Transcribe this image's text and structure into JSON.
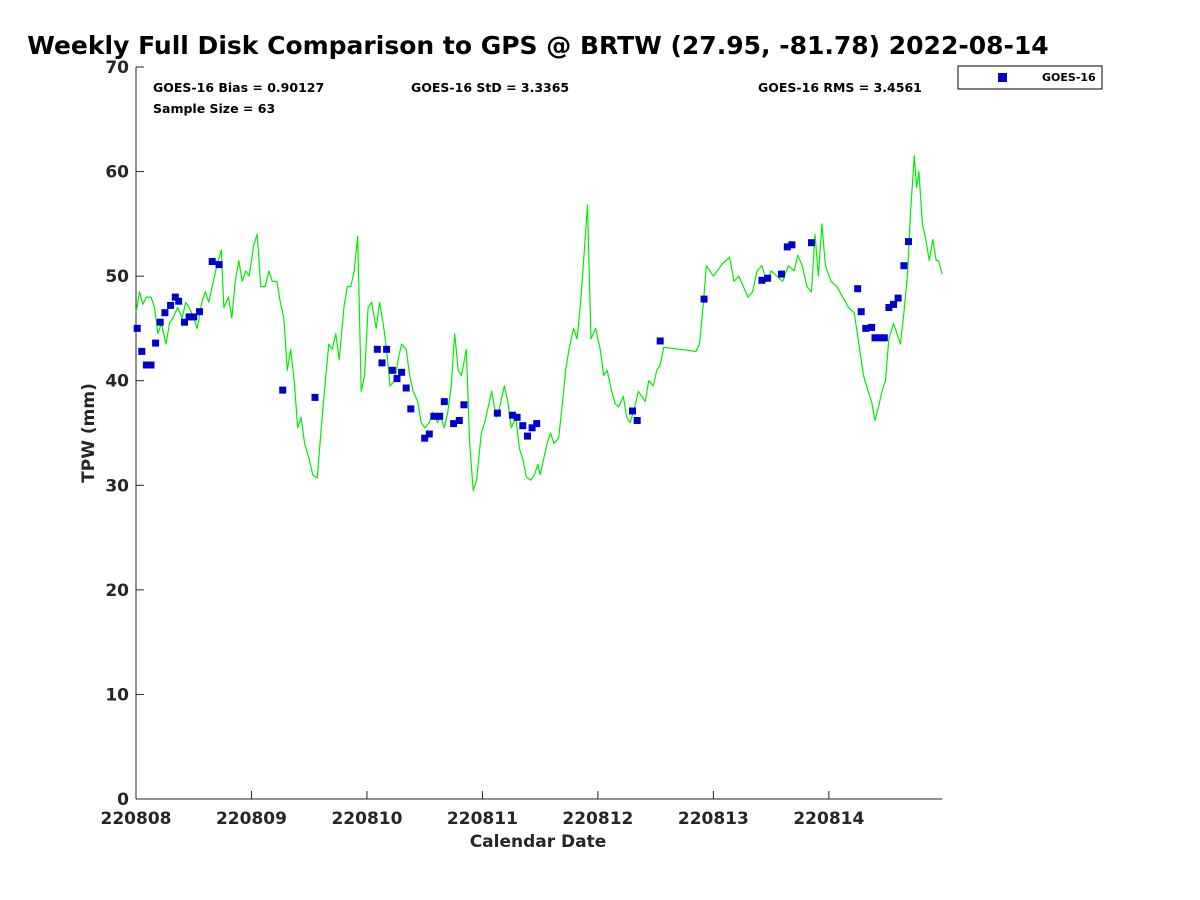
{
  "chart_data": {
    "type": "scatter",
    "title": "Weekly Full Disk Comparison to GPS @ BRTW (27.95, -81.78) 2022-08-14",
    "xlabel": "Calendar Date",
    "ylabel": "TPW (mm)",
    "xlim": [
      0,
      6.98
    ],
    "ylim": [
      0,
      70
    ],
    "x_ticks": [
      0,
      1,
      2,
      3,
      4,
      5,
      6
    ],
    "x_tick_labels": [
      "220808",
      "220809",
      "220810",
      "220811",
      "220812",
      "220813",
      "220814"
    ],
    "y_ticks": [
      0,
      10,
      20,
      30,
      40,
      50,
      60,
      70
    ],
    "y_tick_labels": [
      "0",
      "10",
      "20",
      "30",
      "40",
      "50",
      "60",
      "70"
    ],
    "stats": {
      "bias": "GOES-16 Bias = 0.90127",
      "std": "GOES-16 StD = 3.3365",
      "rms": "GOES-16 RMS = 3.4561",
      "sample": "Sample Size = 63"
    },
    "legend": {
      "label": "GOES-16",
      "position": "outside-top-right",
      "color": "#0000cc"
    },
    "series": [
      {
        "name": "GOES-16",
        "kind": "markers",
        "color": "#0000cc",
        "points": [
          [
            0.01,
            45.0
          ],
          [
            0.05,
            42.8
          ],
          [
            0.09,
            41.5
          ],
          [
            0.13,
            41.5
          ],
          [
            0.17,
            43.6
          ],
          [
            0.21,
            45.6
          ],
          [
            0.25,
            46.5
          ],
          [
            0.3,
            47.2
          ],
          [
            0.34,
            48.0
          ],
          [
            0.37,
            47.6
          ],
          [
            0.42,
            45.6
          ],
          [
            0.46,
            46.1
          ],
          [
            0.5,
            46.1
          ],
          [
            0.55,
            46.6
          ],
          [
            0.66,
            51.4
          ],
          [
            0.72,
            51.1
          ],
          [
            1.27,
            39.1
          ],
          [
            1.55,
            38.4
          ],
          [
            2.09,
            43.0
          ],
          [
            2.13,
            41.7
          ],
          [
            2.17,
            43.0
          ],
          [
            2.22,
            41.0
          ],
          [
            2.26,
            40.2
          ],
          [
            2.3,
            40.8
          ],
          [
            2.34,
            39.3
          ],
          [
            2.38,
            37.3
          ],
          [
            2.5,
            34.5
          ],
          [
            2.54,
            34.9
          ],
          [
            2.58,
            36.6
          ],
          [
            2.63,
            36.6
          ],
          [
            2.67,
            38.0
          ],
          [
            2.75,
            35.9
          ],
          [
            2.8,
            36.2
          ],
          [
            2.84,
            37.7
          ],
          [
            3.13,
            36.9
          ],
          [
            3.26,
            36.7
          ],
          [
            3.3,
            36.5
          ],
          [
            3.35,
            35.7
          ],
          [
            3.39,
            34.7
          ],
          [
            3.43,
            35.5
          ],
          [
            3.47,
            35.9
          ],
          [
            4.3,
            37.1
          ],
          [
            4.34,
            36.2
          ],
          [
            4.54,
            43.8
          ],
          [
            4.92,
            47.8
          ],
          [
            5.42,
            49.6
          ],
          [
            5.47,
            49.8
          ],
          [
            5.59,
            50.2
          ],
          [
            5.64,
            52.8
          ],
          [
            5.68,
            53.0
          ],
          [
            5.85,
            53.2
          ],
          [
            6.25,
            48.8
          ],
          [
            6.28,
            46.6
          ],
          [
            6.32,
            45.0
          ],
          [
            6.37,
            45.1
          ],
          [
            6.4,
            44.1
          ],
          [
            6.44,
            44.1
          ],
          [
            6.48,
            44.1
          ],
          [
            6.52,
            47.0
          ],
          [
            6.56,
            47.3
          ],
          [
            6.6,
            47.9
          ],
          [
            6.65,
            51.0
          ],
          [
            6.69,
            53.3
          ]
        ]
      },
      {
        "name": "GPS",
        "kind": "line",
        "color": "#00ee00",
        "points": [
          [
            0.0,
            46.5
          ],
          [
            0.03,
            48.5
          ],
          [
            0.06,
            47.3
          ],
          [
            0.09,
            48.0
          ],
          [
            0.13,
            48.0
          ],
          [
            0.16,
            47.0
          ],
          [
            0.19,
            44.5
          ],
          [
            0.22,
            45.5
          ],
          [
            0.26,
            43.5
          ],
          [
            0.29,
            45.5
          ],
          [
            0.32,
            46.0
          ],
          [
            0.36,
            47.0
          ],
          [
            0.4,
            46.0
          ],
          [
            0.43,
            47.5
          ],
          [
            0.46,
            47.0
          ],
          [
            0.5,
            46.0
          ],
          [
            0.53,
            45.0
          ],
          [
            0.57,
            47.5
          ],
          [
            0.6,
            48.5
          ],
          [
            0.63,
            47.5
          ],
          [
            0.66,
            49.0
          ],
          [
            0.7,
            51.0
          ],
          [
            0.74,
            52.5
          ],
          [
            0.76,
            47.0
          ],
          [
            0.8,
            48.0
          ],
          [
            0.83,
            46.0
          ],
          [
            0.86,
            49.5
          ],
          [
            0.89,
            51.5
          ],
          [
            0.92,
            49.5
          ],
          [
            0.95,
            50.5
          ],
          [
            0.98,
            50.0
          ],
          [
            1.02,
            53.0
          ],
          [
            1.05,
            54.0
          ],
          [
            1.08,
            49.0
          ],
          [
            1.12,
            49.0
          ],
          [
            1.15,
            50.5
          ],
          [
            1.18,
            49.5
          ],
          [
            1.22,
            49.5
          ],
          [
            1.25,
            47.5
          ],
          [
            1.28,
            46.0
          ],
          [
            1.31,
            41.0
          ],
          [
            1.34,
            43.0
          ],
          [
            1.37,
            40.0
          ],
          [
            1.4,
            35.5
          ],
          [
            1.43,
            36.5
          ],
          [
            1.46,
            34.0
          ],
          [
            1.5,
            32.5
          ],
          [
            1.53,
            31.0
          ],
          [
            1.57,
            30.7
          ],
          [
            1.6,
            35.0
          ],
          [
            1.64,
            40.0
          ],
          [
            1.67,
            43.5
          ],
          [
            1.7,
            43.0
          ],
          [
            1.73,
            44.5
          ],
          [
            1.76,
            42.0
          ],
          [
            1.8,
            47.0
          ],
          [
            1.83,
            49.0
          ],
          [
            1.86,
            49.0
          ],
          [
            1.89,
            50.5
          ],
          [
            1.92,
            53.8
          ],
          [
            1.95,
            39.0
          ],
          [
            1.98,
            40.5
          ],
          [
            2.01,
            47.0
          ],
          [
            2.04,
            47.5
          ],
          [
            2.08,
            45.0
          ],
          [
            2.11,
            47.5
          ],
          [
            2.14,
            45.5
          ],
          [
            2.17,
            43.0
          ],
          [
            2.2,
            39.5
          ],
          [
            2.24,
            40.0
          ],
          [
            2.27,
            42.0
          ],
          [
            2.3,
            43.5
          ],
          [
            2.34,
            43.0
          ],
          [
            2.37,
            40.5
          ],
          [
            2.4,
            39.0
          ],
          [
            2.44,
            38.0
          ],
          [
            2.47,
            36.0
          ],
          [
            2.5,
            35.5
          ],
          [
            2.54,
            36.0
          ],
          [
            2.57,
            37.0
          ],
          [
            2.61,
            36.0
          ],
          [
            2.64,
            36.5
          ],
          [
            2.67,
            35.5
          ],
          [
            2.7,
            37.0
          ],
          [
            2.73,
            39.5
          ],
          [
            2.76,
            44.5
          ],
          [
            2.79,
            41.0
          ],
          [
            2.82,
            40.5
          ],
          [
            2.86,
            43.0
          ],
          [
            2.89,
            34.0
          ],
          [
            2.92,
            29.5
          ],
          [
            2.95,
            30.5
          ],
          [
            2.99,
            35.0
          ],
          [
            3.02,
            36.0
          ],
          [
            3.05,
            37.5
          ],
          [
            3.08,
            39.0
          ],
          [
            3.12,
            36.5
          ],
          [
            3.15,
            37.5
          ],
          [
            3.19,
            39.5
          ],
          [
            3.22,
            38.0
          ],
          [
            3.25,
            35.5
          ],
          [
            3.29,
            36.5
          ],
          [
            3.32,
            33.5
          ],
          [
            3.35,
            32.5
          ],
          [
            3.38,
            30.8
          ],
          [
            3.42,
            30.5
          ],
          [
            3.45,
            31.0
          ],
          [
            3.48,
            32.0
          ],
          [
            3.5,
            31.0
          ],
          [
            3.53,
            32.5
          ],
          [
            3.56,
            34.0
          ],
          [
            3.59,
            35.0
          ],
          [
            3.62,
            34.0
          ],
          [
            3.66,
            34.5
          ],
          [
            3.69,
            37.5
          ],
          [
            3.72,
            41.0
          ],
          [
            3.75,
            43.0
          ],
          [
            3.79,
            45.0
          ],
          [
            3.82,
            44.0
          ],
          [
            3.85,
            47.5
          ],
          [
            3.88,
            52.0
          ],
          [
            3.91,
            56.8
          ],
          [
            3.94,
            44.0
          ],
          [
            3.98,
            45.0
          ],
          [
            4.02,
            43.0
          ],
          [
            4.05,
            40.5
          ],
          [
            4.08,
            41.0
          ],
          [
            4.12,
            39.0
          ],
          [
            4.15,
            37.8
          ],
          [
            4.18,
            37.5
          ],
          [
            4.22,
            38.5
          ],
          [
            4.25,
            36.5
          ],
          [
            4.28,
            36.0
          ],
          [
            4.32,
            37.5
          ],
          [
            4.35,
            39.0
          ],
          [
            4.38,
            38.5
          ],
          [
            4.41,
            38.0
          ],
          [
            4.44,
            40.0
          ],
          [
            4.48,
            39.5
          ],
          [
            4.51,
            41.0
          ],
          [
            4.54,
            41.5
          ],
          [
            4.57,
            43.2
          ],
          [
            4.85,
            42.8
          ],
          [
            4.88,
            43.5
          ],
          [
            4.91,
            47.0
          ],
          [
            4.94,
            51.0
          ],
          [
            5.0,
            50.0
          ],
          [
            5.08,
            51.2
          ],
          [
            5.14,
            51.8
          ],
          [
            5.18,
            49.5
          ],
          [
            5.22,
            50.0
          ],
          [
            5.26,
            49.0
          ],
          [
            5.3,
            48.0
          ],
          [
            5.34,
            48.5
          ],
          [
            5.38,
            50.5
          ],
          [
            5.42,
            51.0
          ],
          [
            5.46,
            49.5
          ],
          [
            5.5,
            50.5
          ],
          [
            5.55,
            50.0
          ],
          [
            5.6,
            49.5
          ],
          [
            5.65,
            51.0
          ],
          [
            5.7,
            50.5
          ],
          [
            5.73,
            52.0
          ],
          [
            5.77,
            51.0
          ],
          [
            5.81,
            49.0
          ],
          [
            5.85,
            48.5
          ],
          [
            5.88,
            54.0
          ],
          [
            5.91,
            50.0
          ],
          [
            5.94,
            55.0
          ],
          [
            5.97,
            51.0
          ],
          [
            6.02,
            49.5
          ],
          [
            6.07,
            49.0
          ],
          [
            6.12,
            48.0
          ],
          [
            6.17,
            47.0
          ],
          [
            6.22,
            46.5
          ],
          [
            6.26,
            43.5
          ],
          [
            6.3,
            40.5
          ],
          [
            6.34,
            39.0
          ],
          [
            6.37,
            38.0
          ],
          [
            6.4,
            36.2
          ],
          [
            6.43,
            37.5
          ],
          [
            6.46,
            39.0
          ],
          [
            6.49,
            40.0
          ],
          [
            6.52,
            44.0
          ],
          [
            6.56,
            45.5
          ],
          [
            6.59,
            44.5
          ],
          [
            6.62,
            43.5
          ],
          [
            6.65,
            46.5
          ],
          [
            6.68,
            50.0
          ],
          [
            6.71,
            56.5
          ],
          [
            6.74,
            61.5
          ],
          [
            6.76,
            58.5
          ],
          [
            6.78,
            60.0
          ],
          [
            6.81,
            55.0
          ],
          [
            6.84,
            53.5
          ],
          [
            6.87,
            51.5
          ],
          [
            6.9,
            53.5
          ],
          [
            6.93,
            51.5
          ],
          [
            6.95,
            51.5
          ],
          [
            6.98,
            50.2
          ]
        ]
      }
    ]
  }
}
